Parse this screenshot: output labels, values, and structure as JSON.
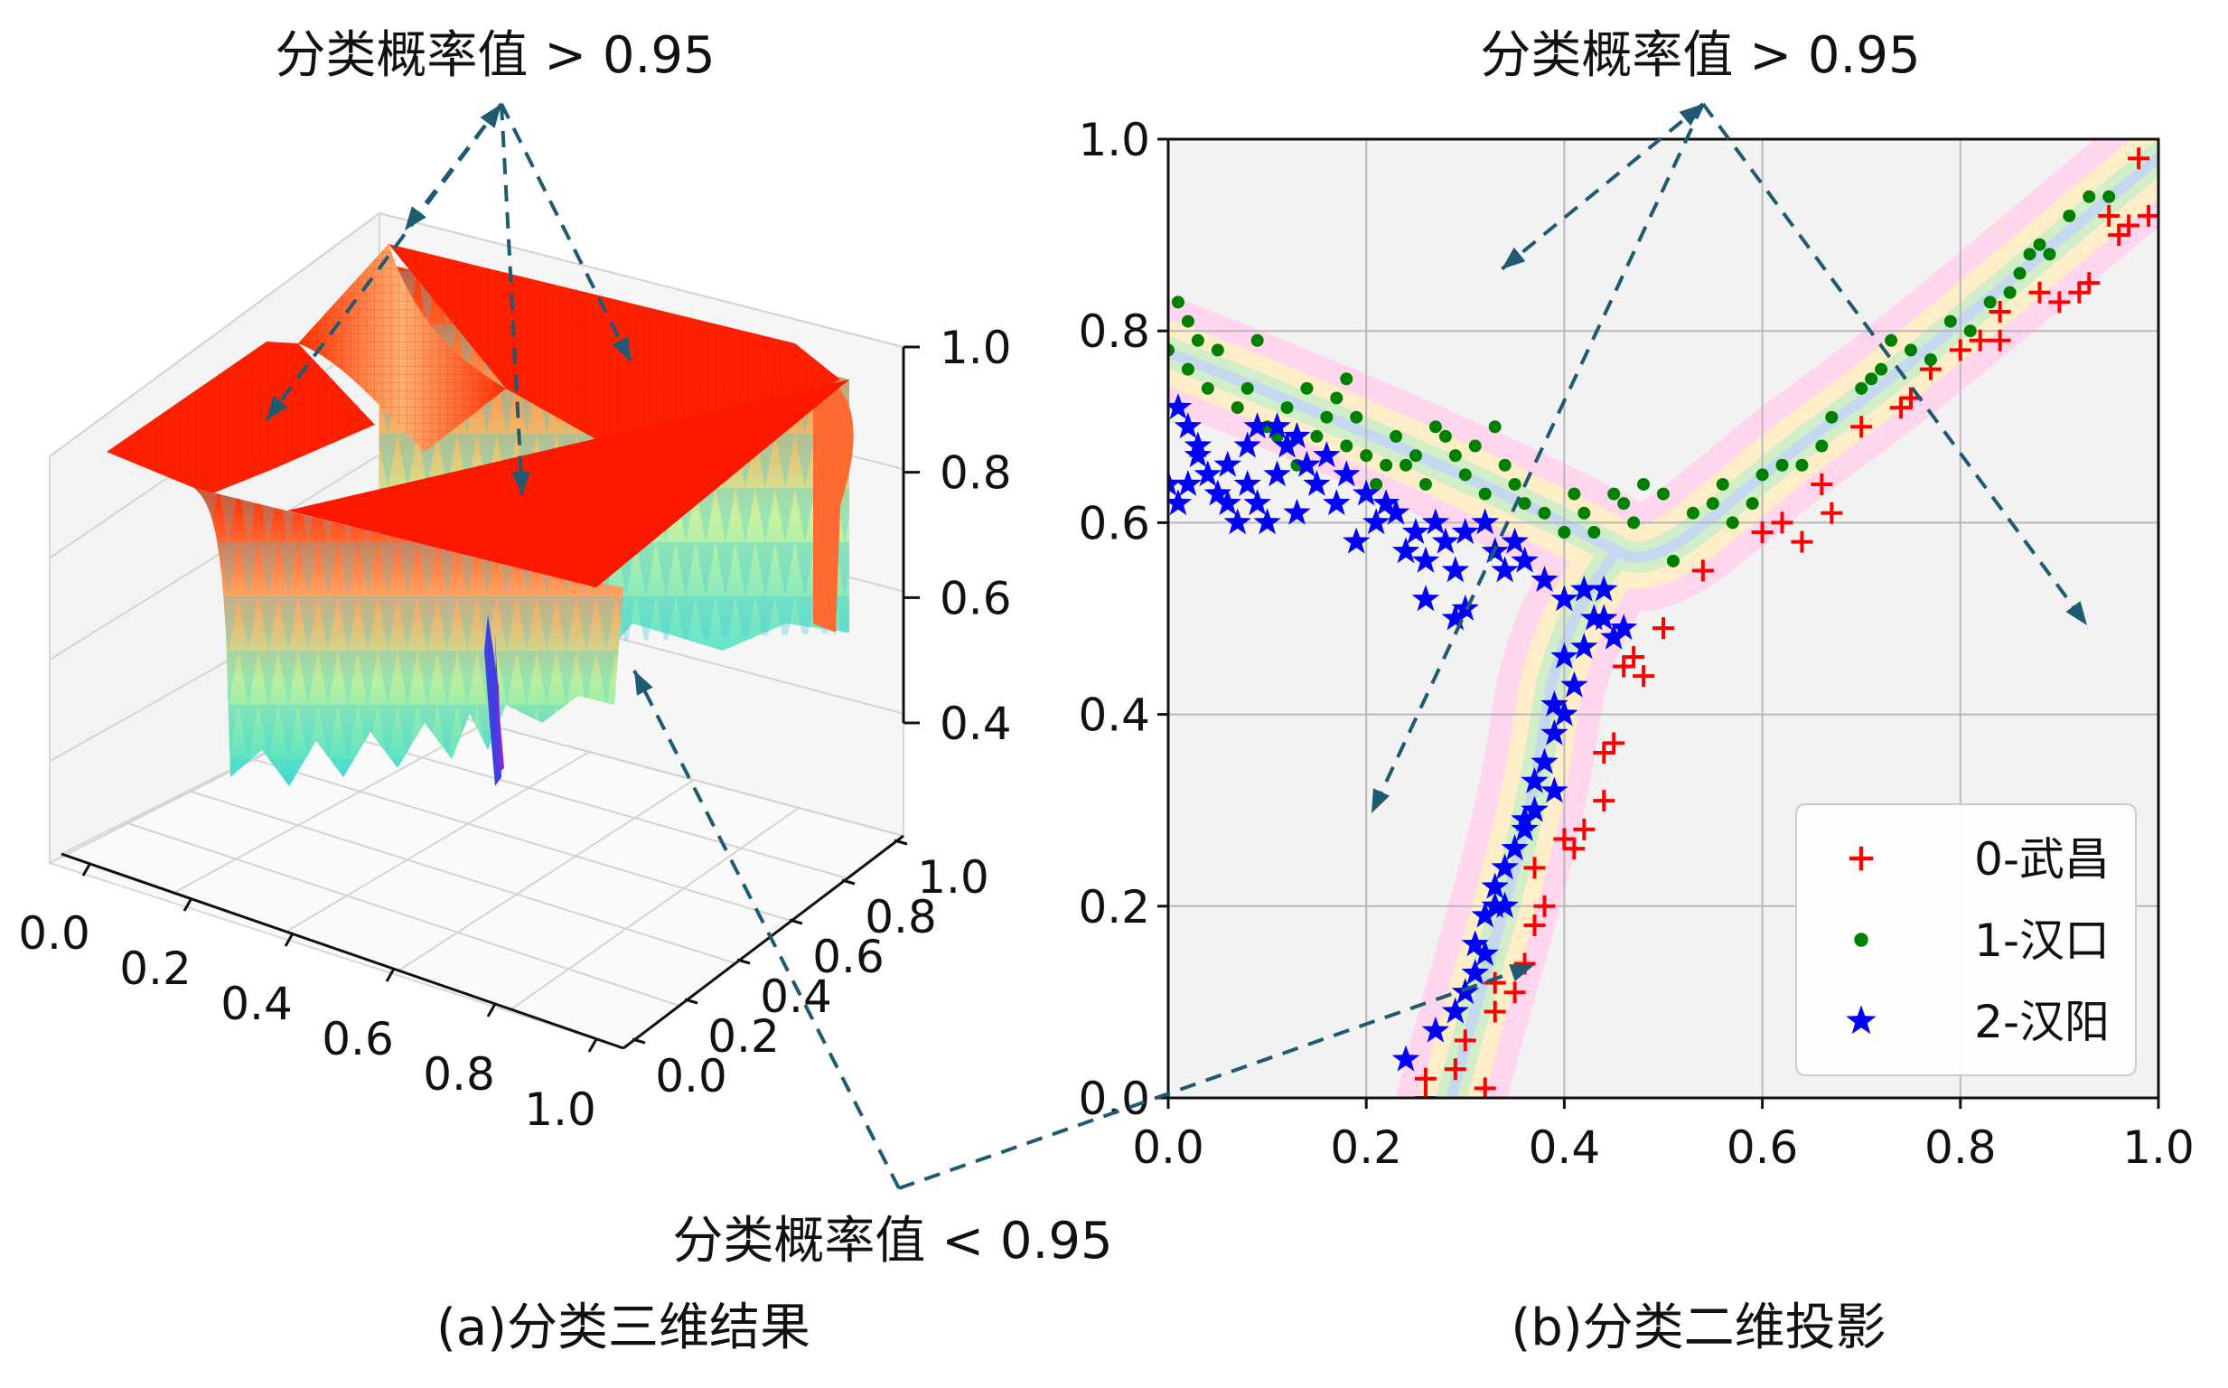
{
  "annotations": {
    "top_left": "分类概率值 > 0.95",
    "top_right": "分类概率值 > 0.95",
    "bottom": "分类概率值 < 0.95"
  },
  "captions": {
    "left": "(a)分类三维结果",
    "right": "(b)分类二维投影"
  },
  "colors": {
    "arrow": "#1f5a73",
    "wuchang": "#ff0000",
    "hankou": "#008000",
    "hanyang": "#0000ff",
    "surface_high": "#ff1a00",
    "surface_low": "#40e0d0",
    "plot_bg": "#f2f2f2"
  },
  "chart_data": [
    {
      "type": "surface3d",
      "x_ticks": [
        "0.0",
        "0.2",
        "0.4",
        "0.6",
        "0.8",
        "1.0"
      ],
      "y_ticks": [
        "0.0",
        "0.2",
        "0.4",
        "0.6",
        "0.8",
        "1.0"
      ],
      "z_ticks": [
        "0.4",
        "0.6",
        "0.8",
        "1.0"
      ],
      "zlim": [
        0.4,
        1.0
      ],
      "grid": true,
      "colormap": "rainbow"
    },
    {
      "type": "scatter",
      "xlim": [
        0.0,
        1.0
      ],
      "ylim": [
        0.0,
        1.0
      ],
      "x_ticks": [
        "0.0",
        "0.2",
        "0.4",
        "0.6",
        "0.8",
        "1.0"
      ],
      "y_ticks": [
        "0.0",
        "0.2",
        "0.4",
        "0.6",
        "0.8",
        "1.0"
      ],
      "grid": true,
      "legend_position": "bottom-right",
      "series": [
        {
          "name": "0-武昌",
          "marker": "plus",
          "points": [
            [
              0.26,
              0.02
            ],
            [
              0.26,
              0.0
            ],
            [
              0.29,
              0.03
            ],
            [
              0.32,
              0.01
            ],
            [
              0.3,
              0.06
            ],
            [
              0.33,
              0.09
            ],
            [
              0.33,
              0.12
            ],
            [
              0.35,
              0.11
            ],
            [
              0.36,
              0.14
            ],
            [
              0.37,
              0.18
            ],
            [
              0.38,
              0.2
            ],
            [
              0.37,
              0.24
            ],
            [
              0.4,
              0.27
            ],
            [
              0.41,
              0.26
            ],
            [
              0.42,
              0.28
            ],
            [
              0.44,
              0.31
            ],
            [
              0.44,
              0.36
            ],
            [
              0.45,
              0.37
            ],
            [
              0.46,
              0.45
            ],
            [
              0.47,
              0.46
            ],
            [
              0.48,
              0.44
            ],
            [
              0.5,
              0.49
            ],
            [
              0.54,
              0.55
            ],
            [
              0.6,
              0.59
            ],
            [
              0.62,
              0.6
            ],
            [
              0.64,
              0.58
            ],
            [
              0.66,
              0.64
            ],
            [
              0.67,
              0.61
            ],
            [
              0.7,
              0.7
            ],
            [
              0.74,
              0.72
            ],
            [
              0.75,
              0.73
            ],
            [
              0.77,
              0.76
            ],
            [
              0.8,
              0.78
            ],
            [
              0.82,
              0.79
            ],
            [
              0.84,
              0.82
            ],
            [
              0.84,
              0.79
            ],
            [
              0.88,
              0.84
            ],
            [
              0.9,
              0.83
            ],
            [
              0.92,
              0.84
            ],
            [
              0.93,
              0.85
            ],
            [
              0.95,
              0.92
            ],
            [
              0.97,
              0.91
            ],
            [
              0.99,
              0.92
            ],
            [
              0.98,
              0.98
            ],
            [
              0.96,
              0.9
            ]
          ]
        },
        {
          "name": "1-汉口",
          "marker": "circle",
          "points": [
            [
              0.01,
              0.83
            ],
            [
              0.02,
              0.81
            ],
            [
              0.0,
              0.78
            ],
            [
              0.02,
              0.76
            ],
            [
              0.03,
              0.79
            ],
            [
              0.05,
              0.78
            ],
            [
              0.04,
              0.74
            ],
            [
              0.07,
              0.72
            ],
            [
              0.09,
              0.79
            ],
            [
              0.08,
              0.74
            ],
            [
              0.1,
              0.7
            ],
            [
              0.11,
              0.69
            ],
            [
              0.12,
              0.72
            ],
            [
              0.13,
              0.66
            ],
            [
              0.14,
              0.74
            ],
            [
              0.15,
              0.69
            ],
            [
              0.16,
              0.71
            ],
            [
              0.17,
              0.73
            ],
            [
              0.18,
              0.75
            ],
            [
              0.18,
              0.68
            ],
            [
              0.19,
              0.71
            ],
            [
              0.2,
              0.67
            ],
            [
              0.21,
              0.64
            ],
            [
              0.22,
              0.66
            ],
            [
              0.23,
              0.69
            ],
            [
              0.24,
              0.66
            ],
            [
              0.25,
              0.67
            ],
            [
              0.26,
              0.64
            ],
            [
              0.27,
              0.7
            ],
            [
              0.28,
              0.69
            ],
            [
              0.29,
              0.67
            ],
            [
              0.3,
              0.65
            ],
            [
              0.31,
              0.68
            ],
            [
              0.32,
              0.63
            ],
            [
              0.33,
              0.7
            ],
            [
              0.34,
              0.66
            ],
            [
              0.35,
              0.64
            ],
            [
              0.36,
              0.62
            ],
            [
              0.38,
              0.61
            ],
            [
              0.4,
              0.59
            ],
            [
              0.41,
              0.63
            ],
            [
              0.42,
              0.61
            ],
            [
              0.43,
              0.59
            ],
            [
              0.45,
              0.63
            ],
            [
              0.46,
              0.62
            ],
            [
              0.47,
              0.6
            ],
            [
              0.48,
              0.64
            ],
            [
              0.5,
              0.63
            ],
            [
              0.51,
              0.56
            ],
            [
              0.53,
              0.61
            ],
            [
              0.55,
              0.62
            ],
            [
              0.56,
              0.64
            ],
            [
              0.57,
              0.6
            ],
            [
              0.59,
              0.62
            ],
            [
              0.6,
              0.65
            ],
            [
              0.62,
              0.66
            ],
            [
              0.64,
              0.66
            ],
            [
              0.66,
              0.68
            ],
            [
              0.67,
              0.71
            ],
            [
              0.7,
              0.74
            ],
            [
              0.71,
              0.75
            ],
            [
              0.73,
              0.79
            ],
            [
              0.75,
              0.78
            ],
            [
              0.77,
              0.77
            ],
            [
              0.79,
              0.81
            ],
            [
              0.81,
              0.8
            ],
            [
              0.83,
              0.83
            ],
            [
              0.85,
              0.84
            ],
            [
              0.86,
              0.86
            ],
            [
              0.88,
              0.89
            ],
            [
              0.89,
              0.88
            ],
            [
              0.91,
              0.92
            ],
            [
              0.93,
              0.94
            ],
            [
              0.95,
              0.94
            ],
            [
              0.87,
              0.88
            ],
            [
              0.72,
              0.76
            ]
          ]
        },
        {
          "name": "2-汉阳",
          "marker": "star",
          "points": [
            [
              0.24,
              0.04
            ],
            [
              0.27,
              0.07
            ],
            [
              0.29,
              0.09
            ],
            [
              0.3,
              0.11
            ],
            [
              0.31,
              0.13
            ],
            [
              0.31,
              0.16
            ],
            [
              0.32,
              0.19
            ],
            [
              0.33,
              0.22
            ],
            [
              0.33,
              0.2
            ],
            [
              0.34,
              0.24
            ],
            [
              0.35,
              0.26
            ],
            [
              0.36,
              0.29
            ],
            [
              0.37,
              0.3
            ],
            [
              0.37,
              0.33
            ],
            [
              0.38,
              0.35
            ],
            [
              0.39,
              0.38
            ],
            [
              0.39,
              0.41
            ],
            [
              0.4,
              0.4
            ],
            [
              0.41,
              0.43
            ],
            [
              0.42,
              0.47
            ],
            [
              0.43,
              0.5
            ],
            [
              0.44,
              0.5
            ],
            [
              0.45,
              0.48
            ],
            [
              0.46,
              0.49
            ],
            [
              0.44,
              0.53
            ],
            [
              0.42,
              0.53
            ],
            [
              0.4,
              0.52
            ],
            [
              0.38,
              0.54
            ],
            [
              0.36,
              0.56
            ],
            [
              0.35,
              0.58
            ],
            [
              0.34,
              0.55
            ],
            [
              0.33,
              0.57
            ],
            [
              0.32,
              0.6
            ],
            [
              0.3,
              0.59
            ],
            [
              0.29,
              0.55
            ],
            [
              0.28,
              0.58
            ],
            [
              0.27,
              0.6
            ],
            [
              0.26,
              0.56
            ],
            [
              0.25,
              0.59
            ],
            [
              0.24,
              0.57
            ],
            [
              0.23,
              0.61
            ],
            [
              0.22,
              0.62
            ],
            [
              0.21,
              0.6
            ],
            [
              0.2,
              0.63
            ],
            [
              0.19,
              0.58
            ],
            [
              0.18,
              0.65
            ],
            [
              0.17,
              0.62
            ],
            [
              0.16,
              0.67
            ],
            [
              0.15,
              0.64
            ],
            [
              0.14,
              0.66
            ],
            [
              0.13,
              0.69
            ],
            [
              0.12,
              0.68
            ],
            [
              0.11,
              0.65
            ],
            [
              0.1,
              0.6
            ],
            [
              0.09,
              0.62
            ],
            [
              0.08,
              0.64
            ],
            [
              0.07,
              0.6
            ],
            [
              0.06,
              0.62
            ],
            [
              0.05,
              0.63
            ],
            [
              0.04,
              0.65
            ],
            [
              0.03,
              0.67
            ],
            [
              0.02,
              0.64
            ],
            [
              0.01,
              0.62
            ],
            [
              0.0,
              0.64
            ],
            [
              0.01,
              0.72
            ],
            [
              0.02,
              0.7
            ],
            [
              0.03,
              0.68
            ],
            [
              0.06,
              0.66
            ],
            [
              0.08,
              0.68
            ],
            [
              0.09,
              0.7
            ],
            [
              0.11,
              0.7
            ],
            [
              0.13,
              0.61
            ],
            [
              0.26,
              0.52
            ],
            [
              0.3,
              0.51
            ],
            [
              0.29,
              0.5
            ],
            [
              0.4,
              0.46
            ],
            [
              0.39,
              0.32
            ],
            [
              0.36,
              0.28
            ],
            [
              0.34,
              0.2
            ],
            [
              0.32,
              0.15
            ]
          ]
        }
      ]
    }
  ]
}
